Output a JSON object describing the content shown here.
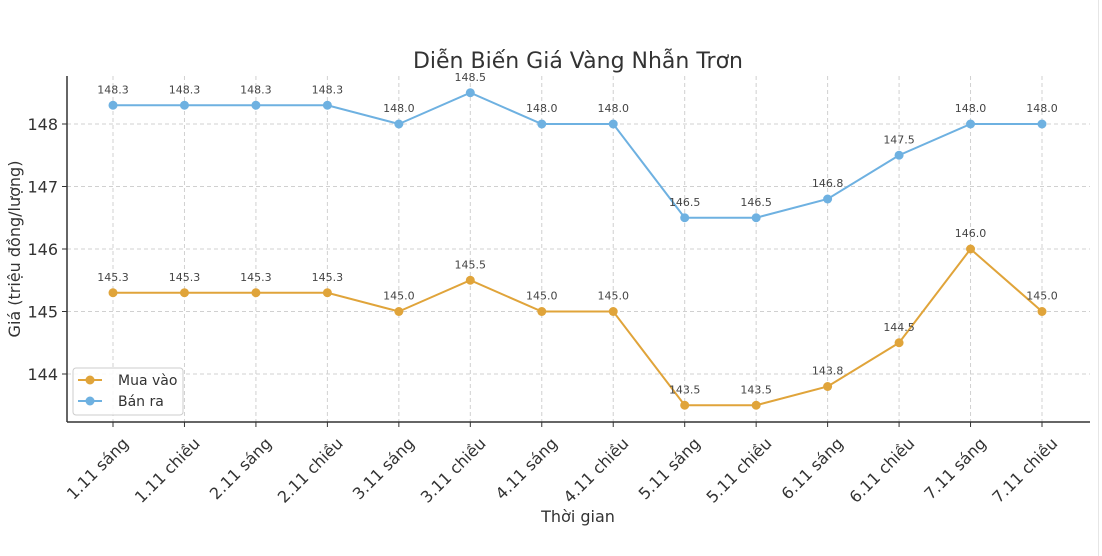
{
  "chart_data": {
    "type": "line",
    "title": "Diễn Biến Giá Vàng Nhẫn Trơn",
    "xlabel": "Thời gian",
    "ylabel": "Giá (triệu đồng/lượng)",
    "categories": [
      "1.11 sáng",
      "1.11 chiều",
      "2.11 sáng",
      "2.11 chiều",
      "3.11 sáng",
      "3.11 chiều",
      "4.11 sáng",
      "4.11 chiều",
      "5.11 sáng",
      "5.11 chiều",
      "6.11 sáng",
      "6.11 chiều",
      "7.11 sáng",
      "7.11 chiều"
    ],
    "series": [
      {
        "name": "Mua vào",
        "color": "#E0A43A",
        "values": [
          145.3,
          145.3,
          145.3,
          145.3,
          145.0,
          145.5,
          145.0,
          145.0,
          143.5,
          143.5,
          143.8,
          144.5,
          146.0,
          145.0
        ]
      },
      {
        "name": "Bán ra",
        "color": "#6EB1E1",
        "values": [
          148.3,
          148.3,
          148.3,
          148.3,
          148.0,
          148.5,
          148.0,
          148.0,
          146.5,
          146.5,
          146.8,
          147.5,
          148.0,
          148.0
        ]
      }
    ],
    "yticks": [
      144,
      145,
      146,
      147,
      148
    ],
    "ylim": [
      143.25,
      148.75
    ],
    "grid": true,
    "legend_position": "lower left"
  }
}
